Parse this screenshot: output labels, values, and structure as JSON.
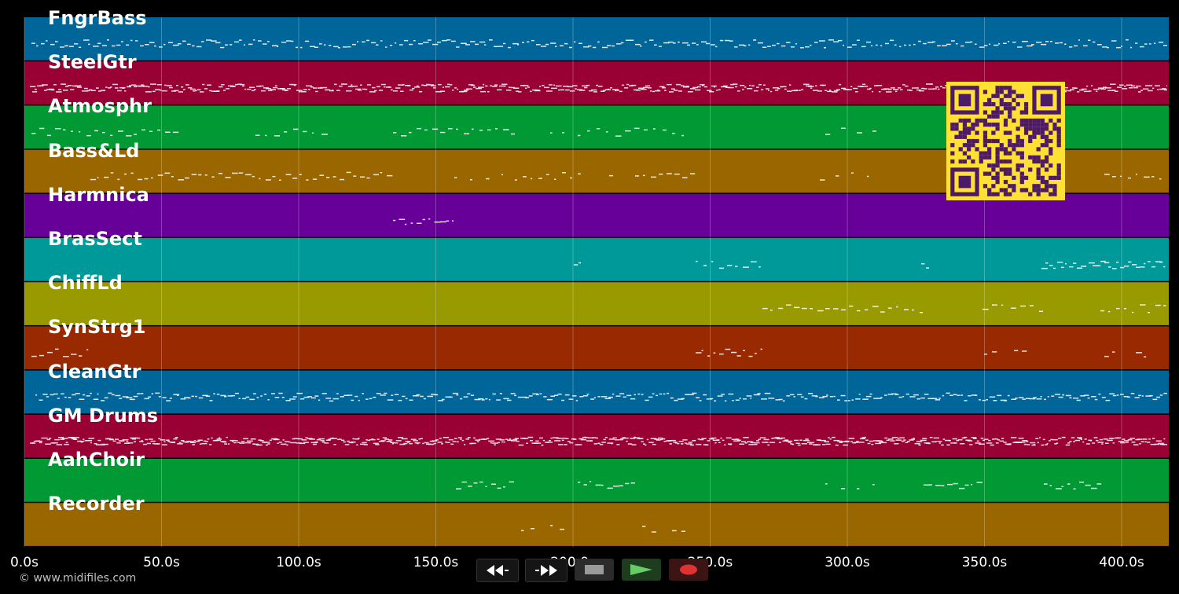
{
  "tracks": [
    {
      "name": "FngrBass",
      "color": "#006699"
    },
    {
      "name": "SteelGtr",
      "color": "#990033"
    },
    {
      "name": "Atmosphr",
      "color": "#009933"
    },
    {
      "name": "Bass&Ld",
      "color": "#996600"
    },
    {
      "name": "Harmnica",
      "color": "#660099"
    },
    {
      "name": "BrasSect",
      "color": "#009999"
    },
    {
      "name": "ChiffLd",
      "color": "#999900"
    },
    {
      "name": "SynStrg1",
      "color": "#992900"
    },
    {
      "name": "CleanGtr",
      "color": "#006699"
    },
    {
      "name": "GM Drums",
      "color": "#990033"
    },
    {
      "name": "AahChoir",
      "color": "#009933"
    },
    {
      "name": "Recorder",
      "color": "#996600"
    }
  ],
  "timeline": {
    "ticks": [
      "0.0s",
      "50.0s",
      "100.0s",
      "150.0s",
      "200.0s",
      "250.0s",
      "300.0s",
      "350.0s",
      "400.0s"
    ]
  },
  "transport": {
    "rewind_icon": "rewind-icon",
    "fast_forward_icon": "fast-forward-icon",
    "stop_icon": "stop-icon",
    "play_icon": "play-icon",
    "record_icon": "record-icon",
    "play_color": "#66cc66",
    "record_color": "#dd3333"
  },
  "qr_code": {
    "fg": "#4d1a66",
    "bg": "#ffe033"
  },
  "footer": {
    "copyright": "© www.midifiles.com"
  }
}
